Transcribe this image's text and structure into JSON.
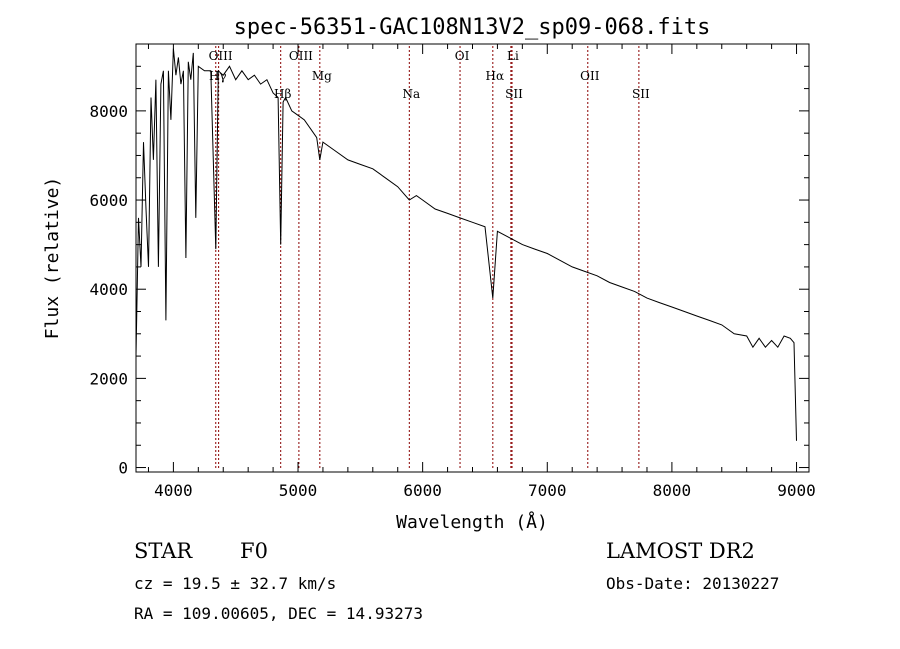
{
  "chart_data": {
    "type": "line",
    "title": "spec-56351-GAC108N13V2_sp09-068.fits",
    "xlabel": "Wavelength (Å)",
    "ylabel": "Flux (relative)",
    "xlim": [
      3700,
      9100
    ],
    "ylim": [
      -100,
      9500
    ],
    "xticks": [
      4000,
      5000,
      6000,
      7000,
      8000,
      9000
    ],
    "yticks": [
      0,
      2000,
      4000,
      6000,
      8000
    ],
    "grid": false,
    "line_color": "#000000",
    "marker_color": "#8b0000",
    "spectral_lines": [
      {
        "name": "OIII",
        "wavelength": 4363
      },
      {
        "name": "Hγ",
        "wavelength": 4340
      },
      {
        "name": "Hβ",
        "wavelength": 4861
      },
      {
        "name": "OIII",
        "wavelength": 5007
      },
      {
        "name": "Mg",
        "wavelength": 5175
      },
      {
        "name": "Na",
        "wavelength": 5893
      },
      {
        "name": "OI",
        "wavelength": 6300
      },
      {
        "name": "Hα",
        "wavelength": 6563
      },
      {
        "name": "SII",
        "wavelength": 6717
      },
      {
        "name": "Li",
        "wavelength": 6708
      },
      {
        "name": "OII",
        "wavelength": 7325
      },
      {
        "name": "SII",
        "wavelength": 7735
      }
    ],
    "series": [
      {
        "x": [
          3700,
          3720,
          3740,
          3760,
          3780,
          3800,
          3820,
          3840,
          3860,
          3880,
          3900,
          3920,
          3940,
          3960,
          3980,
          4000,
          4020,
          4040,
          4060,
          4080,
          4100,
          4120,
          4140,
          4160,
          4180,
          4200,
          4250,
          4300,
          4340,
          4360,
          4400,
          4450,
          4500,
          4550,
          4600,
          4650,
          4700,
          4750,
          4800,
          4840,
          4861,
          4880,
          4900,
          4950,
          5000,
          5050,
          5100,
          5150,
          5175,
          5200,
          5300,
          5400,
          5500,
          5600,
          5700,
          5800,
          5893,
          5950,
          6000,
          6100,
          6200,
          6300,
          6400,
          6500,
          6563,
          6600,
          6700,
          6800,
          6900,
          7000,
          7100,
          7200,
          7300,
          7400,
          7500,
          7600,
          7700,
          7800,
          7900,
          8000,
          8100,
          8200,
          8300,
          8400,
          8500,
          8600,
          8650,
          8700,
          8750,
          8800,
          8850,
          8900,
          8950,
          8980,
          9000
        ],
        "y": [
          2500,
          5600,
          4500,
          7300,
          5800,
          4500,
          8300,
          6900,
          8700,
          4500,
          8600,
          8900,
          3300,
          8900,
          7800,
          9400,
          8800,
          9200,
          8600,
          8900,
          4700,
          9100,
          8700,
          9300,
          5600,
          9000,
          8900,
          8900,
          4900,
          8900,
          8800,
          9000,
          8700,
          8900,
          8700,
          8800,
          8600,
          8700,
          8400,
          8300,
          5000,
          8200,
          8300,
          8000,
          7900,
          7800,
          7600,
          7400,
          6900,
          7300,
          7100,
          6900,
          6800,
          6700,
          6500,
          6300,
          6000,
          6100,
          6000,
          5800,
          5700,
          5600,
          5500,
          5400,
          3800,
          5300,
          5150,
          5000,
          4900,
          4800,
          4650,
          4500,
          4400,
          4300,
          4150,
          4050,
          3950,
          3800,
          3700,
          3600,
          3500,
          3400,
          3300,
          3200,
          3000,
          2950,
          2700,
          2900,
          2700,
          2850,
          2700,
          2950,
          2900,
          2800,
          600
        ]
      }
    ]
  },
  "footer": {
    "object_type": "STAR",
    "spectral_class": "F0",
    "cz": "cz = 19.5 ± 32.7 km/s",
    "radec": "RA = 109.00605, DEC =  14.93273",
    "survey": "LAMOST DR2",
    "obs_date": "Obs-Date: 20130227"
  }
}
